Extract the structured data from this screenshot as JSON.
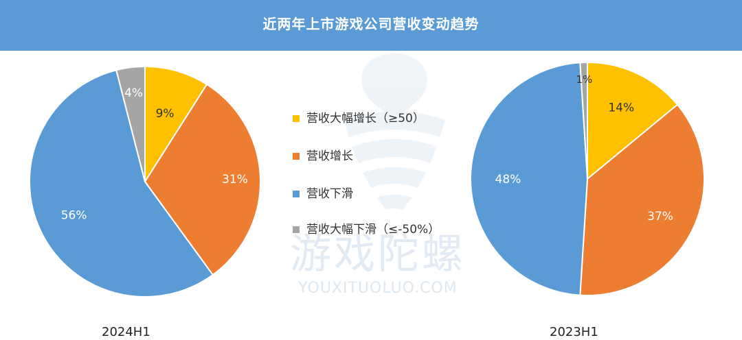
{
  "title": "近两年上市游戏公司营收变动趋势",
  "watermark": {
    "name": "游戏陀螺",
    "site": "YOUXITUOLUO.COM"
  },
  "legend": [
    {
      "label": "营收大幅增长（≥50）",
      "color": "#ffc000"
    },
    {
      "label": "营收增长",
      "color": "#ed7d31"
    },
    {
      "label": "营收下滑",
      "color": "#5b9bd5"
    },
    {
      "label": "营收大幅下滑（≤-50%）",
      "color": "#a5a5a5"
    }
  ],
  "chart_data": [
    {
      "type": "pie",
      "caption": "2024H1",
      "categories": [
        "营收大幅增长（≥50）",
        "营收增长",
        "营收下滑",
        "营收大幅下滑（≤-50%）"
      ],
      "values": [
        9,
        31,
        56,
        4
      ],
      "data_labels": [
        "9%",
        "31%",
        "56%",
        "4%"
      ],
      "colors": [
        "#ffc000",
        "#ed7d31",
        "#5b9bd5",
        "#a5a5a5"
      ]
    },
    {
      "type": "pie",
      "caption": "2023H1",
      "categories": [
        "营收大幅增长（≥50）",
        "营收增长",
        "营收下滑",
        "营收大幅下滑（≤-50%）"
      ],
      "values": [
        14,
        37,
        48,
        1
      ],
      "data_labels": [
        "14%",
        "37%",
        "48%",
        "1%"
      ],
      "colors": [
        "#ffc000",
        "#ed7d31",
        "#5b9bd5",
        "#a5a5a5"
      ]
    }
  ]
}
